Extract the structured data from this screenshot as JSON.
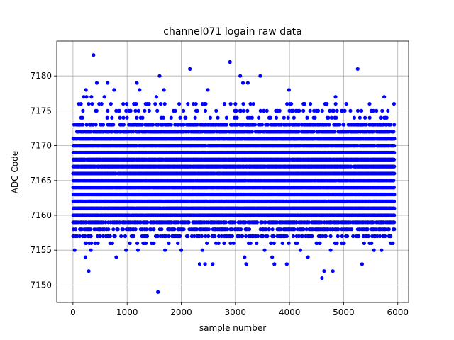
{
  "chart_data": {
    "type": "scatter",
    "title": "channel071 logain raw data",
    "xlabel": "sample number",
    "ylabel": "ADC Code",
    "xlim": [
      -300,
      6200
    ],
    "ylim": [
      7147.5,
      7185.0
    ],
    "x_ticks": [
      0,
      1000,
      2000,
      3000,
      4000,
      5000,
      6000
    ],
    "y_ticks": [
      7150,
      7155,
      7160,
      7165,
      7170,
      7175,
      7180
    ],
    "grid": true,
    "legend": "none",
    "marker_color": "#0000ff",
    "series": [
      {
        "sample_range": [
          0,
          5930
        ],
        "dense_band": [
          7158,
          7173
        ],
        "sparse_points": [
          {
            "x": 30,
            "y": 7155
          },
          {
            "x": 180,
            "y": 7157
          },
          {
            "x": 200,
            "y": 7177
          },
          {
            "x": 230,
            "y": 7154
          },
          {
            "x": 250,
            "y": 7177
          },
          {
            "x": 240,
            "y": 7178
          },
          {
            "x": 290,
            "y": 7152
          },
          {
            "x": 300,
            "y": 7156
          },
          {
            "x": 380,
            "y": 7183
          },
          {
            "x": 330,
            "y": 7155
          },
          {
            "x": 340,
            "y": 7177
          },
          {
            "x": 440,
            "y": 7179
          },
          {
            "x": 460,
            "y": 7156
          },
          {
            "x": 580,
            "y": 7177
          },
          {
            "x": 640,
            "y": 7179
          },
          {
            "x": 700,
            "y": 7176
          },
          {
            "x": 760,
            "y": 7178
          },
          {
            "x": 800,
            "y": 7154
          },
          {
            "x": 980,
            "y": 7155
          },
          {
            "x": 1050,
            "y": 7156
          },
          {
            "x": 1180,
            "y": 7179
          },
          {
            "x": 1200,
            "y": 7155
          },
          {
            "x": 1230,
            "y": 7178
          },
          {
            "x": 1320,
            "y": 7156
          },
          {
            "x": 1450,
            "y": 7156
          },
          {
            "x": 1540,
            "y": 7177
          },
          {
            "x": 1570,
            "y": 7149
          },
          {
            "x": 1600,
            "y": 7180
          },
          {
            "x": 1620,
            "y": 7176
          },
          {
            "x": 1680,
            "y": 7178
          },
          {
            "x": 1700,
            "y": 7155
          },
          {
            "x": 2000,
            "y": 7155
          },
          {
            "x": 2160,
            "y": 7181
          },
          {
            "x": 2340,
            "y": 7153
          },
          {
            "x": 2390,
            "y": 7155
          },
          {
            "x": 2440,
            "y": 7153
          },
          {
            "x": 2490,
            "y": 7178
          },
          {
            "x": 2580,
            "y": 7153
          },
          {
            "x": 2900,
            "y": 7182
          },
          {
            "x": 2910,
            "y": 7156
          },
          {
            "x": 3090,
            "y": 7180
          },
          {
            "x": 3140,
            "y": 7179
          },
          {
            "x": 3170,
            "y": 7154
          },
          {
            "x": 3200,
            "y": 7153
          },
          {
            "x": 3230,
            "y": 7179
          },
          {
            "x": 3280,
            "y": 7156
          },
          {
            "x": 3460,
            "y": 7180
          },
          {
            "x": 3540,
            "y": 7155
          },
          {
            "x": 3680,
            "y": 7154
          },
          {
            "x": 3720,
            "y": 7153
          },
          {
            "x": 3950,
            "y": 7153
          },
          {
            "x": 3990,
            "y": 7178
          },
          {
            "x": 4200,
            "y": 7155
          },
          {
            "x": 4340,
            "y": 7154
          },
          {
            "x": 4600,
            "y": 7151
          },
          {
            "x": 4640,
            "y": 7152
          },
          {
            "x": 4760,
            "y": 7155
          },
          {
            "x": 4800,
            "y": 7152
          },
          {
            "x": 4850,
            "y": 7177
          },
          {
            "x": 5000,
            "y": 7156
          },
          {
            "x": 5260,
            "y": 7181
          },
          {
            "x": 5340,
            "y": 7153
          },
          {
            "x": 5480,
            "y": 7156
          },
          {
            "x": 5560,
            "y": 7155
          },
          {
            "x": 5700,
            "y": 7155
          },
          {
            "x": 5750,
            "y": 7177
          },
          {
            "x": 5930,
            "y": 7176
          }
        ]
      }
    ]
  }
}
